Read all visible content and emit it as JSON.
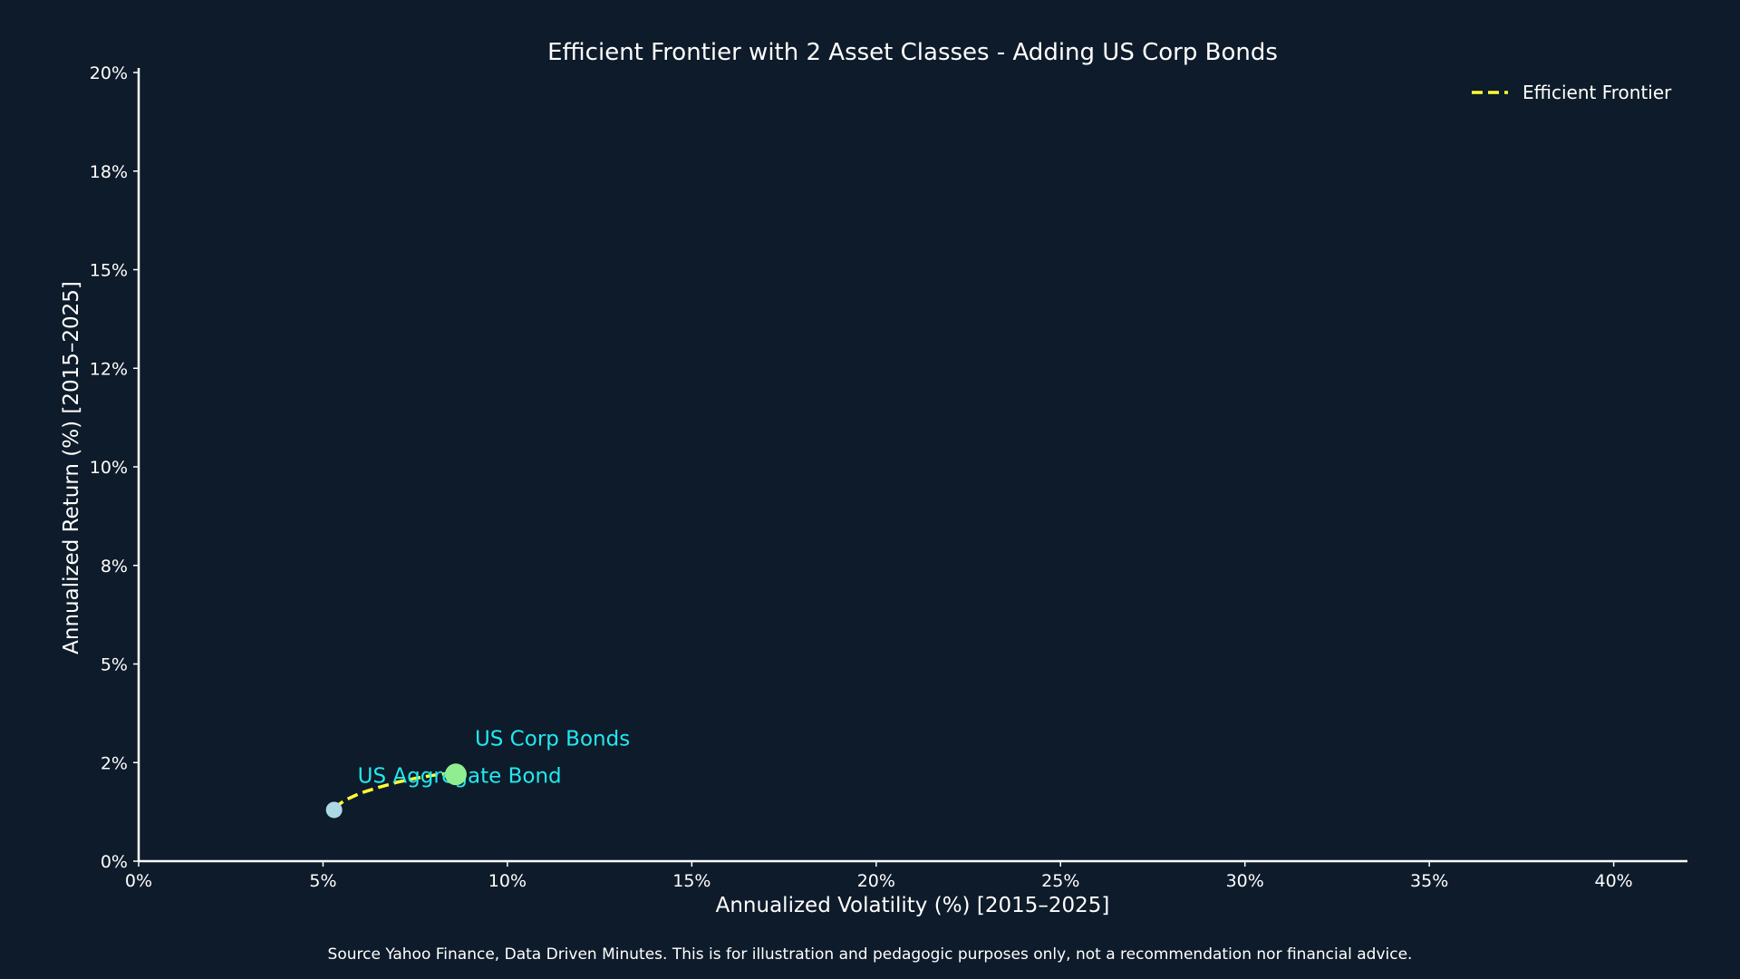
{
  "chart_data": {
    "type": "scatter",
    "title": "Efficient Frontier with 2 Asset Classes - Adding US Corp Bonds",
    "xlabel": "Annualized Volatility (%) [2015–2025]",
    "ylabel": "Annualized Return (%) [2015–2025]",
    "xlim": [
      0,
      42
    ],
    "ylim": [
      0,
      20
    ],
    "x_ticks": [
      0,
      5,
      10,
      15,
      20,
      25,
      30,
      35,
      40
    ],
    "x_tick_labels": [
      "0%",
      "5%",
      "10%",
      "15%",
      "20%",
      "25%",
      "30%",
      "35%",
      "40%"
    ],
    "y_ticks": [
      0,
      2.5,
      5,
      7.5,
      10,
      12.5,
      15,
      17.5,
      20
    ],
    "y_tick_labels": [
      "0%",
      "2%",
      "5%",
      "8%",
      "10%",
      "12%",
      "15%",
      "18%",
      "20%"
    ],
    "grid": false,
    "legend_position": "top-right",
    "series": [
      {
        "name": "Efficient Frontier",
        "kind": "line",
        "style": "dashed",
        "color": "#ffff33",
        "x": [
          5.3,
          5.6,
          6.0,
          6.5,
          7.0,
          7.5,
          8.0,
          8.6
        ],
        "y": [
          1.35,
          1.55,
          1.72,
          1.87,
          2.0,
          2.1,
          2.18,
          2.25
        ]
      }
    ],
    "points": [
      {
        "label": "US Aggregate Bond",
        "x": 5.3,
        "y": 1.3,
        "color": "#add8e6",
        "label_color": "#22e8f0",
        "size": "small"
      },
      {
        "label": "US Corp Bonds",
        "x": 8.6,
        "y": 2.2,
        "color": "#90ee90",
        "label_color": "#22e8f0",
        "size": "large"
      }
    ]
  },
  "footer": {
    "source_note": "Source Yahoo Finance, Data Driven Minutes. This is for illustration and pedagogic purposes only, not a recommendation nor financial advice."
  }
}
